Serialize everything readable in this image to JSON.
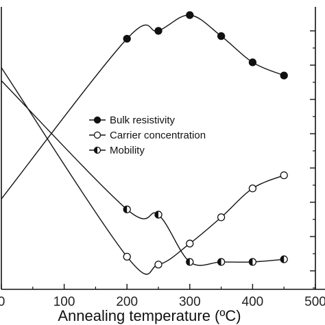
{
  "chart_data": {
    "type": "line",
    "xlabel": "Annealing temperature (ºC)",
    "ylabel": "",
    "xlim": [
      0,
      500
    ],
    "xticks": [
      0,
      100,
      200,
      300,
      400,
      500
    ],
    "xtick_labels": [
      "0",
      "100",
      "200",
      "300",
      "400",
      "500"
    ],
    "legend_position": "center",
    "grid": false,
    "y_scale": "normalized (tick labels cropped)",
    "series": [
      {
        "name": "Bulk resistivity",
        "marker": "filled-circle",
        "x": [
          0,
          200,
          250,
          300,
          350,
          400,
          450
        ],
        "y": [
          0.3,
          0.91,
          0.94,
          1.0,
          0.92,
          0.82,
          0.77
        ]
      },
      {
        "name": "Carrier concentration",
        "marker": "open-circle",
        "x": [
          0,
          200,
          250,
          300,
          350,
          400,
          450
        ],
        "y": [
          0.8,
          0.08,
          0.05,
          0.13,
          0.23,
          0.34,
          0.39
        ]
      },
      {
        "name": "Mobility",
        "marker": "half-filled-circle",
        "x": [
          0,
          200,
          250,
          300,
          350,
          400,
          450
        ],
        "y": [
          0.75,
          0.26,
          0.24,
          0.06,
          0.06,
          0.06,
          0.07
        ]
      }
    ]
  }
}
